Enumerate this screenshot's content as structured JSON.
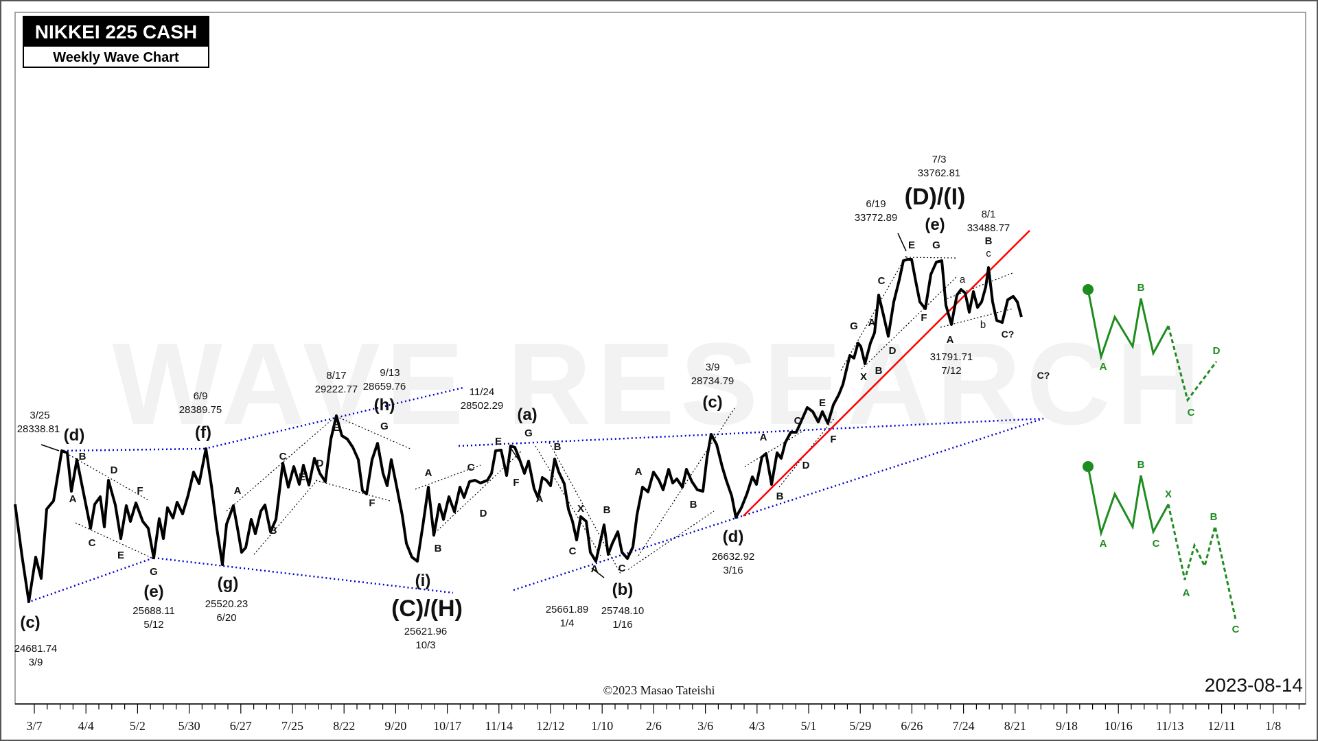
{
  "chart_data": {
    "type": "line",
    "title": "NIKKEI 225 CASH",
    "subtitle": "Weekly Wave Chart",
    "watermark": "WAVE RESEARCH",
    "copyright": "©2023 Masao Tateishi",
    "date": "2023-08-14",
    "x_ticks": [
      "3/7",
      "4/4",
      "5/2",
      "5/30",
      "6/27",
      "7/25",
      "8/22",
      "9/20",
      "10/17",
      "11/14",
      "12/12",
      "1/10",
      "2/6",
      "3/6",
      "4/3",
      "5/1",
      "5/29",
      "6/26",
      "7/24",
      "8/21",
      "9/18",
      "10/16",
      "11/13",
      "12/11",
      "1/8"
    ],
    "colors": {
      "price": "#000000",
      "trend": "#ff0000",
      "channel": "#0000cc",
      "forecast": "#1e8c1e"
    },
    "annotations": {
      "c_low": {
        "label": "(c)",
        "date": "3/9",
        "price": "24681.74"
      },
      "d_high": {
        "label": "(d)",
        "date": "3/25",
        "price": "28338.81"
      },
      "e_low": {
        "label": "(e)",
        "date": "5/12",
        "price": "25688.11"
      },
      "f_high": {
        "label": "(f)",
        "date": "6/9",
        "price": "28389.75"
      },
      "g_low": {
        "label": "(g)",
        "date": "6/20",
        "price": "25520.23"
      },
      "E_high": {
        "label": "E",
        "date": "8/17",
        "price": "29222.77"
      },
      "h_high": {
        "label": "(h)",
        "date": "9/13",
        "price": "28659.76"
      },
      "i_low": {
        "label": "(i)",
        "date": "10/3",
        "price": "25621.96"
      },
      "CH": {
        "label": "(C)/(H)"
      },
      "a_high": {
        "label": "(a)",
        "date": "11/24",
        "price": "28502.29"
      },
      "A_low": {
        "label": "A",
        "date": "1/4",
        "price": "25661.89"
      },
      "b_low": {
        "label": "(b)",
        "date": "1/16",
        "price": "25748.10"
      },
      "c_high": {
        "label": "(c)",
        "date": "3/9",
        "price": "28734.79"
      },
      "d_low": {
        "label": "(d)",
        "date": "3/16",
        "price": "26632.92"
      },
      "E2_high": {
        "date": "6/19",
        "price": "33772.89"
      },
      "DI": {
        "label": "(D)/(I)",
        "date": "7/3",
        "price": "33762.81"
      },
      "e_wave": {
        "label": "(e)"
      },
      "A_jul": {
        "date": "7/12",
        "price": "31791.71"
      },
      "B_aug": {
        "date": "8/1",
        "price": "33488.77"
      },
      "c_q": "C?"
    },
    "wave_labels": [
      "A",
      "B",
      "C",
      "D",
      "E",
      "F",
      "G",
      "X",
      "a",
      "b",
      "c"
    ],
    "forecast_1_labels": [
      "A",
      "B",
      "C",
      "D"
    ],
    "forecast_2_labels": [
      "A",
      "B",
      "C",
      "X",
      "A",
      "B",
      "C"
    ]
  }
}
